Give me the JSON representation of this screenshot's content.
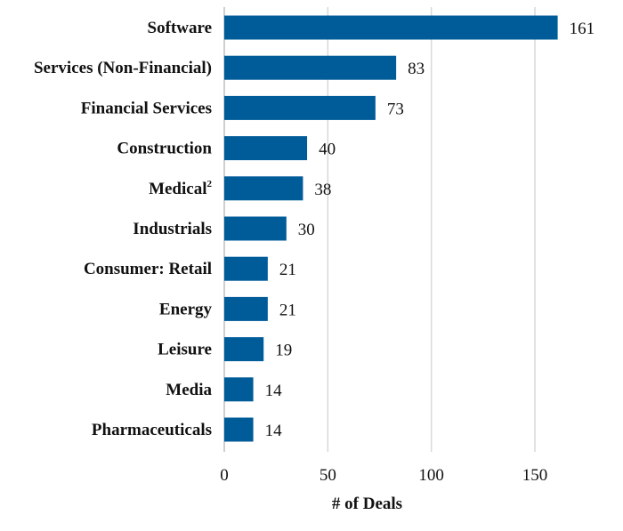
{
  "chart_data": {
    "type": "bar",
    "orientation": "horizontal",
    "categories": [
      "Software",
      "Services (Non-Financial)",
      "Financial Services",
      "Construction",
      "Medical",
      "Industrials",
      "Consumer: Retail",
      "Energy",
      "Leisure",
      "Media",
      "Pharmaceuticals"
    ],
    "category_footnotes": [
      "",
      "",
      "",
      "",
      "2",
      "",
      "",
      "",
      "",
      "",
      ""
    ],
    "values": [
      161,
      83,
      73,
      40,
      38,
      30,
      21,
      21,
      19,
      14,
      14
    ],
    "xlabel": "# of Deals",
    "xlim": [
      0,
      170
    ],
    "xticks": [
      0,
      50,
      100,
      150
    ],
    "grid": "vertical",
    "bar_color": "#005b99",
    "show_data_labels": true
  }
}
